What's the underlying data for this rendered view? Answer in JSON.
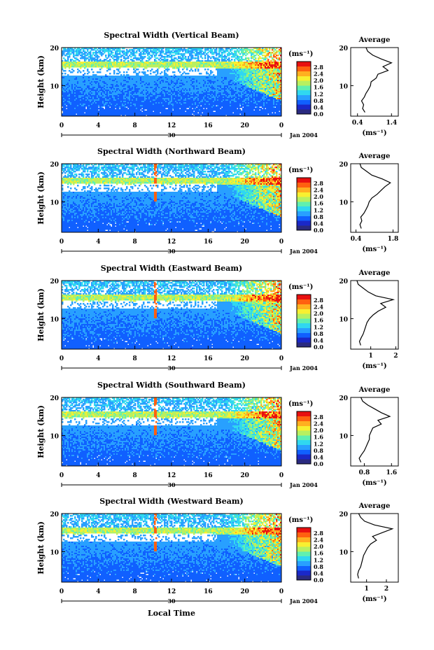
{
  "figure": {
    "xlabel": "Local Time",
    "date_label": "Jan 2004",
    "day_label": "30",
    "unit_label": "(ms⁻¹)",
    "avg_title": "Average",
    "height_label": "Height (km)"
  },
  "colorbar": {
    "ticks": [
      "2.8",
      "2.4",
      "2.0",
      "1.6",
      "1.2",
      "0.8",
      "0.4",
      "0.0"
    ],
    "colors": [
      "#2a2a80",
      "#1a28c8",
      "#1060ff",
      "#28a0ff",
      "#30d8f0",
      "#60f0b0",
      "#b8f060",
      "#f8f030",
      "#ffb020",
      "#ff6010",
      "#e81010"
    ]
  },
  "chart_data": [
    {
      "type": "heatmap",
      "title": "Spectral Width (Vertical Beam)",
      "xlabel": "",
      "ylabel": "Height (km)",
      "x_ticks": [
        "0",
        "4",
        "8",
        "12",
        "16",
        "20",
        "0"
      ],
      "y_ticks": [
        "20",
        "10"
      ],
      "xlim": [
        0,
        24
      ],
      "ylim": [
        2,
        20
      ],
      "colorbar_range": [
        0.0,
        2.8
      ],
      "average_profile": {
        "title": "Average",
        "xlabel": "(ms⁻¹)",
        "x_ticks": [
          "0.4",
          "1.4"
        ],
        "xlim": [
          0.2,
          1.6
        ],
        "points": [
          [
            0.62,
            3
          ],
          [
            0.55,
            4
          ],
          [
            0.58,
            5
          ],
          [
            0.52,
            6
          ],
          [
            0.6,
            7
          ],
          [
            0.65,
            8
          ],
          [
            0.72,
            9
          ],
          [
            0.78,
            10
          ],
          [
            0.8,
            11
          ],
          [
            0.95,
            12
          ],
          [
            1.0,
            13
          ],
          [
            1.3,
            14
          ],
          [
            1.15,
            15
          ],
          [
            1.4,
            16
          ],
          [
            1.1,
            17
          ],
          [
            0.85,
            18
          ],
          [
            0.7,
            19
          ],
          [
            0.65,
            20
          ]
        ]
      }
    },
    {
      "type": "heatmap",
      "title": "Spectral Width (Northward Beam)",
      "xlabel": "",
      "ylabel": "Height (km)",
      "x_ticks": [
        "0",
        "4",
        "8",
        "12",
        "16",
        "20",
        "0"
      ],
      "y_ticks": [
        "20",
        "10"
      ],
      "xlim": [
        0,
        24
      ],
      "ylim": [
        2,
        20
      ],
      "colorbar_range": [
        0.0,
        2.8
      ],
      "average_profile": {
        "title": "Average",
        "xlabel": "(ms⁻¹)",
        "x_ticks": [
          "0.4",
          "1.8"
        ],
        "xlim": [
          0.2,
          2.0
        ],
        "points": [
          [
            0.6,
            3
          ],
          [
            0.55,
            4
          ],
          [
            0.62,
            5
          ],
          [
            0.58,
            6
          ],
          [
            0.7,
            7
          ],
          [
            0.78,
            8
          ],
          [
            0.85,
            9
          ],
          [
            0.9,
            10
          ],
          [
            1.0,
            11
          ],
          [
            1.2,
            12
          ],
          [
            1.35,
            13
          ],
          [
            1.5,
            14
          ],
          [
            1.7,
            15
          ],
          [
            1.4,
            16
          ],
          [
            1.0,
            17
          ],
          [
            0.8,
            18
          ],
          [
            0.6,
            19
          ],
          [
            0.55,
            20
          ]
        ]
      }
    },
    {
      "type": "heatmap",
      "title": "Spectral Width (Eastward Beam)",
      "xlabel": "",
      "ylabel": "Height (km)",
      "x_ticks": [
        "0",
        "4",
        "8",
        "12",
        "16",
        "20",
        "0"
      ],
      "y_ticks": [
        "20",
        "10"
      ],
      "xlim": [
        0,
        24
      ],
      "ylim": [
        2,
        20
      ],
      "colorbar_range": [
        0.0,
        2.8
      ],
      "average_profile": {
        "title": "Average",
        "xlabel": "(ms⁻¹)",
        "x_ticks": [
          "1",
          "2"
        ],
        "xlim": [
          0.2,
          2.1
        ],
        "points": [
          [
            0.6,
            3
          ],
          [
            0.55,
            4
          ],
          [
            0.62,
            5
          ],
          [
            0.7,
            6
          ],
          [
            0.75,
            7
          ],
          [
            0.8,
            8
          ],
          [
            0.85,
            9
          ],
          [
            0.95,
            10
          ],
          [
            1.1,
            11
          ],
          [
            1.3,
            12
          ],
          [
            1.6,
            13
          ],
          [
            1.4,
            14
          ],
          [
            1.9,
            15
          ],
          [
            1.2,
            16
          ],
          [
            0.9,
            17
          ],
          [
            0.7,
            18
          ],
          [
            0.5,
            19
          ],
          [
            0.45,
            20
          ]
        ]
      }
    },
    {
      "type": "heatmap",
      "title": "Spectral Width (Southward Beam)",
      "xlabel": "",
      "ylabel": "Height (km)",
      "x_ticks": [
        "0",
        "4",
        "8",
        "12",
        "16",
        "20",
        "0"
      ],
      "y_ticks": [
        "20",
        "10"
      ],
      "xlim": [
        0,
        24
      ],
      "ylim": [
        2,
        20
      ],
      "colorbar_range": [
        0.0,
        2.8
      ],
      "average_profile": {
        "title": "Average",
        "xlabel": "(ms⁻¹)",
        "x_ticks": [
          "0.8",
          "1.6"
        ],
        "xlim": [
          0.4,
          1.8
        ],
        "points": [
          [
            0.7,
            3
          ],
          [
            0.65,
            4
          ],
          [
            0.72,
            5
          ],
          [
            0.8,
            6
          ],
          [
            0.85,
            7
          ],
          [
            0.9,
            8
          ],
          [
            0.95,
            9
          ],
          [
            0.95,
            10
          ],
          [
            1.0,
            11
          ],
          [
            1.05,
            12
          ],
          [
            1.3,
            13
          ],
          [
            1.2,
            14
          ],
          [
            1.55,
            15
          ],
          [
            1.3,
            16
          ],
          [
            1.1,
            17
          ],
          [
            0.9,
            18
          ],
          [
            0.75,
            19
          ],
          [
            0.7,
            20
          ]
        ]
      }
    },
    {
      "type": "heatmap",
      "title": "Spectral Width (Westward Beam)",
      "xlabel": "Local Time",
      "ylabel": "Height (km)",
      "x_ticks": [
        "0",
        "4",
        "8",
        "12",
        "16",
        "20",
        "0"
      ],
      "y_ticks": [
        "20",
        "10"
      ],
      "xlim": [
        0,
        24
      ],
      "ylim": [
        2,
        20
      ],
      "colorbar_range": [
        0.0,
        2.8
      ],
      "average_profile": {
        "title": "Average",
        "xlabel": "(ms⁻¹)",
        "x_ticks": [
          "1",
          "2"
        ],
        "xlim": [
          0.2,
          2.6
        ],
        "points": [
          [
            0.6,
            3
          ],
          [
            0.55,
            4
          ],
          [
            0.6,
            5
          ],
          [
            0.7,
            6
          ],
          [
            0.75,
            7
          ],
          [
            0.8,
            8
          ],
          [
            0.85,
            9
          ],
          [
            0.95,
            10
          ],
          [
            1.05,
            11
          ],
          [
            1.2,
            12
          ],
          [
            1.5,
            13
          ],
          [
            1.3,
            14
          ],
          [
            1.8,
            15
          ],
          [
            2.3,
            16
          ],
          [
            1.4,
            17
          ],
          [
            0.9,
            18
          ],
          [
            0.7,
            19
          ],
          [
            0.6,
            20
          ]
        ]
      }
    }
  ]
}
